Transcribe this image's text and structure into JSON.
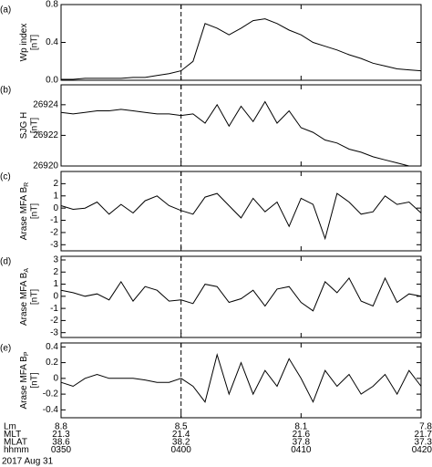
{
  "chart_data": [
    {
      "type": "line",
      "panel_label": "(a)",
      "ylabel": "Wp index",
      "yunit": "[nT]",
      "color": "#000000",
      "x": [
        0,
        1,
        2,
        3,
        4,
        5,
        6,
        7,
        8,
        9,
        10,
        11,
        12,
        13,
        14,
        15,
        16,
        17,
        18,
        19,
        20,
        21,
        22,
        23,
        24,
        25,
        26,
        27,
        28,
        29,
        30
      ],
      "values": [
        0.01,
        0.01,
        0.02,
        0.02,
        0.02,
        0.02,
        0.03,
        0.03,
        0.05,
        0.07,
        0.1,
        0.2,
        0.6,
        0.55,
        0.48,
        0.55,
        0.63,
        0.65,
        0.6,
        0.53,
        0.48,
        0.4,
        0.36,
        0.32,
        0.27,
        0.23,
        0.18,
        0.15,
        0.12,
        0.11,
        0.1
      ],
      "xlim": [
        0,
        30
      ],
      "ylim": [
        0,
        0.8
      ],
      "yticks": [
        {
          "value": 0,
          "label": "0.0"
        },
        0.4,
        0.8
      ]
    },
    {
      "type": "line",
      "panel_label": "(b)",
      "ylabel": "SJG H",
      "yunit": "[nT]",
      "color": "#000000",
      "x": [
        0,
        1,
        2,
        3,
        4,
        5,
        6,
        7,
        8,
        9,
        10,
        11,
        12,
        13,
        14,
        15,
        16,
        17,
        18,
        19,
        20,
        21,
        22,
        23,
        24,
        25,
        26,
        27,
        28,
        29,
        30
      ],
      "values": [
        26923.5,
        26923.4,
        26923.5,
        26923.6,
        26923.6,
        26923.7,
        26923.6,
        26923.5,
        26923.4,
        26923.4,
        26923.3,
        26923.4,
        26922.8,
        26924,
        26922.6,
        26923.9,
        26922.9,
        26924.2,
        26922.8,
        26923.6,
        26922.5,
        26922.2,
        26921.7,
        26921.5,
        26921.1,
        26920.9,
        26920.6,
        26920.4,
        26920.2,
        26920,
        26920
      ],
      "xlim": [
        0,
        30
      ],
      "ylim": [
        26920,
        26925.3
      ],
      "yticks": [
        26920,
        26922,
        26924
      ]
    },
    {
      "type": "line",
      "panel_label": "(c)",
      "ylabel": "Arase MFA B",
      "ylabel_sub": "R",
      "yunit": "[nT]",
      "color": "#000000",
      "x": [
        0,
        1,
        2,
        3,
        4,
        5,
        6,
        7,
        8,
        9,
        10,
        11,
        12,
        13,
        14,
        15,
        16,
        17,
        18,
        19,
        20,
        21,
        22,
        23,
        24,
        25,
        26,
        27,
        28,
        29,
        30
      ],
      "values": [
        0.2,
        -0.1,
        0,
        0.5,
        -0.5,
        0.3,
        -0.4,
        0.6,
        1,
        0.2,
        -0.2,
        -0.5,
        0.9,
        1.2,
        0.2,
        -0.8,
        0.8,
        -0.3,
        0.5,
        -1.5,
        0.8,
        0.3,
        -2.5,
        1.2,
        0.5,
        -0.5,
        -0.3,
        1,
        0.3,
        0.5,
        -0.4
      ],
      "xlim": [
        0,
        30
      ],
      "ylim": [
        -3.5,
        3
      ],
      "yticks": [
        -3,
        -2,
        -1,
        0,
        1,
        2
      ]
    },
    {
      "type": "line",
      "panel_label": "(d)",
      "ylabel": "Arase MFA B",
      "ylabel_sub": "A",
      "yunit": "[nT]",
      "color": "#000000",
      "x": [
        0,
        1,
        2,
        3,
        4,
        5,
        6,
        7,
        8,
        9,
        10,
        11,
        12,
        13,
        14,
        15,
        16,
        17,
        18,
        19,
        20,
        21,
        22,
        23,
        24,
        25,
        26,
        27,
        28,
        29,
        30
      ],
      "values": [
        0.5,
        0.3,
        0,
        0.2,
        -0.3,
        1.2,
        -0.4,
        0.8,
        0.5,
        -0.4,
        -0.3,
        -0.6,
        1,
        0.8,
        -0.5,
        -0.2,
        0.5,
        -0.8,
        0.6,
        0.8,
        -0.5,
        -1.2,
        1.2,
        0.3,
        1.5,
        -0.4,
        -0.8,
        1.5,
        -0.5,
        0.2,
        0
      ],
      "xlim": [
        0,
        30
      ],
      "ylim": [
        -3.4,
        3.3
      ],
      "yticks": [
        -3,
        -2,
        -1,
        0,
        1,
        2,
        3
      ]
    },
    {
      "type": "line",
      "panel_label": "(e)",
      "ylabel": "Arase MFA B",
      "ylabel_sub": "P",
      "yunit": "[nT]",
      "color": "#000000",
      "x": [
        0,
        1,
        2,
        3,
        4,
        5,
        6,
        7,
        8,
        9,
        10,
        11,
        12,
        13,
        14,
        15,
        16,
        17,
        18,
        19,
        20,
        21,
        22,
        23,
        24,
        25,
        26,
        27,
        28,
        29,
        30
      ],
      "values": [
        -0.05,
        -0.1,
        0,
        0.05,
        0,
        0,
        0,
        -0.02,
        -0.05,
        -0.05,
        0,
        -0.1,
        -0.3,
        0.3,
        -0.2,
        0.2,
        -0.2,
        0.1,
        -0.1,
        0.25,
        0,
        -0.3,
        0.1,
        -0.1,
        0.05,
        -0.2,
        -0.1,
        0.05,
        -0.2,
        0.1,
        -0.1
      ],
      "xlim": [
        0,
        30
      ],
      "ylim": [
        -0.5,
        0.45
      ],
      "yticks": [
        -0.4,
        -0.2,
        0,
        0.2,
        0.4
      ]
    }
  ],
  "x_axis": {
    "tick_values": [
      0,
      10,
      20,
      30
    ],
    "vline": 10,
    "rows": [
      {
        "name": "Lm",
        "labels": [
          "8.8",
          "8.5",
          "8.1",
          "7.8"
        ]
      },
      {
        "name": "MLT",
        "labels": [
          "21.3",
          "21.4",
          "21.6",
          "21.7"
        ]
      },
      {
        "name": "MLAT",
        "labels": [
          "38.6",
          "38.2",
          "37.8",
          "37.3"
        ]
      },
      {
        "name": "hhmm",
        "labels": [
          "0350",
          "0400",
          "0410",
          "0420"
        ]
      }
    ]
  },
  "date": "2017 Aug 31"
}
